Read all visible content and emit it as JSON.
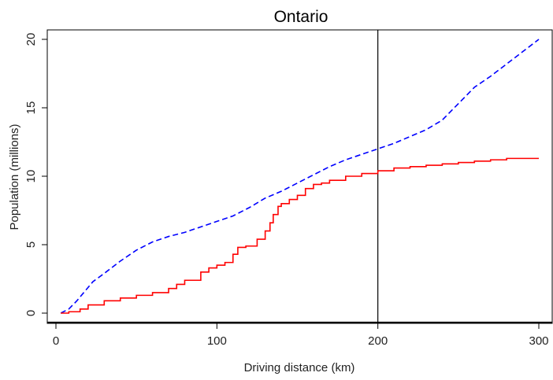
{
  "chart_data": {
    "type": "line",
    "title": "Ontario",
    "xlabel": "Driving distance (km)",
    "ylabel": "Population (millions)",
    "xlim": [
      0,
      300
    ],
    "ylim": [
      0,
      20
    ],
    "xticks": [
      0,
      100,
      200,
      300
    ],
    "yticks": [
      0,
      5,
      10,
      15,
      20
    ],
    "grid": false,
    "legend": "none",
    "reference_line_x": 200,
    "series": [
      {
        "style": "dashed",
        "color": "#0000ff",
        "x": [
          3,
          8,
          13,
          18,
          23,
          30,
          40,
          50,
          60,
          70,
          80,
          90,
          100,
          110,
          120,
          130,
          140,
          150,
          160,
          170,
          180,
          190,
          200,
          210,
          220,
          230,
          240,
          250,
          260,
          270,
          280,
          290,
          300
        ],
        "y": [
          0,
          0.3,
          0.9,
          1.6,
          2.3,
          2.9,
          3.8,
          4.6,
          5.2,
          5.6,
          5.9,
          6.3,
          6.7,
          7.1,
          7.7,
          8.4,
          8.9,
          9.5,
          10.1,
          10.7,
          11.2,
          11.6,
          12.0,
          12.4,
          12.9,
          13.4,
          14.1,
          15.3,
          16.5,
          17.3,
          18.2,
          19.1,
          20.0
        ]
      },
      {
        "style": "solid",
        "color": "#ff0000",
        "step": true,
        "x": [
          3,
          8,
          15,
          20,
          30,
          40,
          50,
          60,
          70,
          75,
          80,
          90,
          95,
          100,
          105,
          110,
          113,
          118,
          125,
          130,
          133,
          135,
          138,
          140,
          145,
          150,
          155,
          160,
          165,
          170,
          180,
          190,
          200,
          210,
          220,
          230,
          240,
          250,
          260,
          270,
          280,
          290,
          300
        ],
        "y": [
          0,
          0.1,
          0.3,
          0.6,
          0.9,
          1.1,
          1.3,
          1.5,
          1.8,
          2.1,
          2.4,
          3.0,
          3.3,
          3.5,
          3.7,
          4.3,
          4.8,
          4.9,
          5.4,
          6.0,
          6.6,
          7.2,
          7.8,
          8.0,
          8.3,
          8.6,
          9.1,
          9.4,
          9.5,
          9.7,
          10.0,
          10.2,
          10.4,
          10.6,
          10.7,
          10.8,
          10.9,
          11.0,
          11.1,
          11.2,
          11.3,
          11.3,
          11.3
        ]
      }
    ]
  }
}
